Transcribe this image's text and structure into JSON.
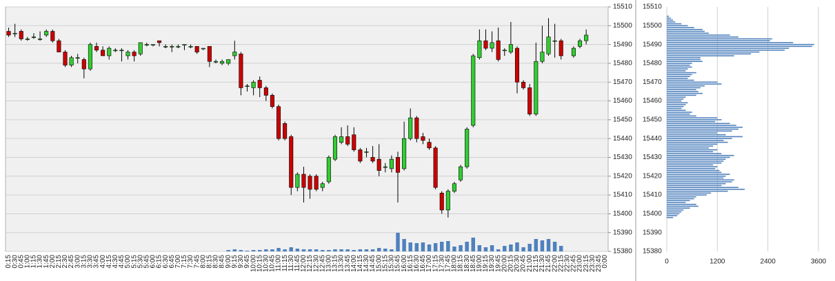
{
  "chart_data": [
    {
      "type": "candlestick",
      "categories": [
        "0:15",
        "0:30",
        "0:45",
        "1:00",
        "1:15",
        "1:30",
        "1:45",
        "2:00",
        "2:15",
        "2:30",
        "2:45",
        "3:00",
        "3:15",
        "3:30",
        "3:45",
        "4:00",
        "4:15",
        "4:30",
        "4:45",
        "5:00",
        "5:15",
        "5:30",
        "5:45",
        "6:00",
        "6:15",
        "6:30",
        "6:45",
        "7:00",
        "7:15",
        "7:30",
        "7:45",
        "8:00",
        "8:15",
        "8:30",
        "8:45",
        "9:00",
        "9:15",
        "9:30",
        "9:45",
        "10:00",
        "10:15",
        "10:30",
        "10:45",
        "11:00",
        "11:15",
        "11:30",
        "11:45",
        "12:00",
        "12:15",
        "12:30",
        "12:45",
        "13:00",
        "13:15",
        "13:30",
        "13:45",
        "14:00",
        "14:15",
        "14:30",
        "14:45",
        "15:00",
        "15:15",
        "15:30",
        "15:45",
        "16:00",
        "16:15",
        "16:30",
        "16:45",
        "17:00",
        "17:15",
        "17:30",
        "17:45",
        "18:00",
        "18:15",
        "18:30",
        "18:45",
        "19:00",
        "19:15",
        "19:30",
        "19:45",
        "20:00",
        "20:15",
        "20:30",
        "20:45",
        "21:00",
        "21:15",
        "21:30",
        "21:45",
        "22:00",
        "22:15",
        "22:30",
        "22:45",
        "23:00",
        "23:15",
        "23:30",
        "23:45",
        "0:00"
      ],
      "open": [
        15497,
        15496,
        15497,
        15493,
        15494,
        15493,
        15495,
        15497,
        15492,
        15486,
        15479,
        15483,
        15482,
        15477,
        15489,
        15487,
        15484,
        15487,
        15487,
        15484,
        15486,
        15485,
        15490,
        15490,
        15492,
        15489,
        15489,
        15489,
        15490,
        15489,
        15489,
        15488,
        15489,
        15481,
        15480,
        15480,
        15484,
        15485,
        15468,
        15467,
        15471,
        15467,
        15463,
        15457,
        15448,
        15441,
        15414,
        15421,
        15420,
        15420,
        15414,
        15417,
        15429,
        15438,
        15441,
        15442,
        15434,
        15433,
        15430,
        15429,
        15425,
        15424,
        15430,
        15424,
        15440,
        15451,
        15441,
        15438,
        15435,
        15411,
        15402,
        15412,
        15418,
        15425,
        15447,
        15483,
        15492,
        15488,
        15492,
        15487,
        15486,
        15488,
        15470,
        15467,
        15453,
        15481,
        15485,
        15492,
        15492,
        null,
        15484,
        15489,
        15492,
        null,
        null,
        null
      ],
      "high": [
        15499,
        15501,
        15498,
        15494,
        15496,
        15497,
        15498,
        15498,
        15493,
        15487,
        15484,
        15485,
        15483,
        15491,
        15491,
        15489,
        15489,
        15488,
        15488,
        15487,
        15487,
        15491,
        15491,
        15490,
        15492,
        15490,
        15490,
        15490,
        15490,
        15490,
        15489,
        15488,
        15489,
        15482,
        15482,
        15482,
        15492,
        15486,
        15469,
        15471,
        15473,
        15468,
        15464,
        15458,
        15449,
        15442,
        15422,
        15425,
        15421,
        15421,
        15417,
        15431,
        15442,
        15446,
        15447,
        15446,
        15435,
        15435,
        15436,
        15437,
        15427,
        15431,
        15433,
        15449,
        15456,
        15452,
        15443,
        15440,
        15436,
        15412,
        15413,
        15417,
        15426,
        15446,
        15485,
        15498,
        15498,
        15497,
        15499,
        15488,
        15502,
        15489,
        15471,
        15469,
        15491,
        15500,
        15504,
        15501,
        15493,
        null,
        15489,
        15493,
        15498,
        null,
        null,
        null
      ],
      "low": [
        15494,
        15494,
        15492,
        15492,
        15493,
        15492,
        15494,
        15491,
        15486,
        15478,
        15478,
        15480,
        15472,
        15476,
        15486,
        15484,
        15482,
        15486,
        15481,
        15482,
        15481,
        15484,
        15489,
        15489,
        15489,
        15488,
        15486,
        15488,
        15487,
        15488,
        15485,
        15487,
        15478,
        15480,
        15479,
        15479,
        15482,
        15463,
        15465,
        15463,
        15462,
        15460,
        15456,
        15439,
        15439,
        15410,
        15412,
        15406,
        15408,
        15412,
        15412,
        15416,
        15428,
        15437,
        15436,
        15433,
        15427,
        15430,
        15427,
        15420,
        15422,
        15422,
        15406,
        15423,
        15439,
        15438,
        15437,
        15434,
        15413,
        15400,
        15398,
        15411,
        15417,
        15424,
        15446,
        15482,
        15487,
        15486,
        15481,
        15484,
        15485,
        15464,
        15466,
        15452,
        15452,
        15480,
        15484,
        15483,
        15482,
        null,
        15483,
        15488,
        15490,
        null,
        null,
        null
      ],
      "close": [
        15495,
        15496,
        15493,
        15493,
        15494,
        15493,
        15497,
        15492,
        15486,
        15479,
        15483,
        15483,
        15477,
        15490,
        15487,
        15484,
        15488,
        15487,
        15487,
        15486,
        15484,
        15491,
        15490,
        15490,
        15491,
        15489,
        15489,
        15489,
        15490,
        15489,
        15486,
        15488,
        15481,
        15481,
        15481,
        15482,
        15486,
        15467,
        15468,
        15470,
        15467,
        15463,
        15457,
        15440,
        15440,
        15414,
        15421,
        15414,
        15413,
        15413,
        15416,
        15430,
        15441,
        15441,
        15437,
        15434,
        15428,
        15433,
        15428,
        15423,
        15425,
        15429,
        15422,
        15440,
        15451,
        15440,
        15439,
        15435,
        15414,
        15402,
        15412,
        15416,
        15425,
        15445,
        15484,
        15492,
        15488,
        15491,
        15482,
        15487,
        15490,
        15470,
        15467,
        15453,
        15481,
        15486,
        15494,
        15492,
        15484,
        null,
        15488,
        15492,
        15495,
        null,
        null,
        null
      ],
      "volume": [
        null,
        null,
        null,
        null,
        null,
        null,
        null,
        null,
        null,
        null,
        null,
        null,
        null,
        null,
        null,
        null,
        null,
        null,
        null,
        null,
        null,
        null,
        null,
        null,
        null,
        null,
        null,
        null,
        null,
        null,
        null,
        null,
        null,
        null,
        null,
        2,
        3,
        2,
        1,
        2,
        2,
        3,
        3,
        5,
        3,
        6,
        4,
        3,
        3,
        3,
        2,
        2,
        3,
        3,
        3,
        2,
        3,
        3,
        3,
        5,
        4,
        3,
        27,
        18,
        13,
        12,
        13,
        10,
        12,
        14,
        15,
        7,
        9,
        14,
        20,
        9,
        6,
        9,
        3,
        8,
        10,
        13,
        6,
        11,
        18,
        16,
        18,
        14,
        8,
        null,
        null,
        null,
        null,
        null,
        null,
        null
      ],
      "up_color": "#33cc33",
      "down_color": "#cc0000",
      "volume_color": "#4f81bd",
      "ylim": [
        15380,
        15510
      ],
      "yticks": [
        15380,
        15390,
        15400,
        15410,
        15420,
        15430,
        15440,
        15450,
        15460,
        15470,
        15480,
        15490,
        15500,
        15510
      ],
      "grid": true
    },
    {
      "type": "hbar",
      "categories": [
        15505,
        15504,
        15503,
        15502,
        15501,
        15500,
        15499,
        15498,
        15497,
        15496,
        15495,
        15494,
        15493,
        15492,
        15491,
        15490,
        15489,
        15488,
        15487,
        15486,
        15485,
        15484,
        15483,
        15482,
        15481,
        15480,
        15479,
        15478,
        15477,
        15476,
        15475,
        15474,
        15473,
        15472,
        15471,
        15470,
        15469,
        15468,
        15467,
        15466,
        15465,
        15464,
        15463,
        15462,
        15461,
        15460,
        15459,
        15458,
        15457,
        15456,
        15455,
        15454,
        15453,
        15452,
        15451,
        15450,
        15449,
        15448,
        15447,
        15446,
        15445,
        15444,
        15443,
        15442,
        15441,
        15440,
        15439,
        15438,
        15437,
        15436,
        15435,
        15434,
        15433,
        15432,
        15431,
        15430,
        15429,
        15428,
        15427,
        15426,
        15425,
        15424,
        15423,
        15422,
        15421,
        15420,
        15419,
        15418,
        15417,
        15416,
        15415,
        15414,
        15413,
        15412,
        15411,
        15410,
        15409,
        15408,
        15407,
        15406,
        15405,
        15404,
        15403,
        15402,
        15401,
        15400,
        15399,
        15398
      ],
      "values": [
        50,
        100,
        150,
        200,
        350,
        500,
        650,
        850,
        900,
        1000,
        1500,
        1700,
        2500,
        2450,
        3000,
        3500,
        3450,
        2900,
        2800,
        2200,
        2000,
        1600,
        800,
        800,
        850,
        600,
        550,
        600,
        500,
        450,
        700,
        600,
        550,
        500,
        650,
        1200,
        1300,
        900,
        800,
        700,
        750,
        850,
        700,
        450,
        400,
        350,
        500,
        450,
        400,
        350,
        450,
        600,
        550,
        700,
        1200,
        1300,
        1150,
        1500,
        1650,
        1800,
        1700,
        1550,
        1200,
        1400,
        1800,
        1550,
        1350,
        1450,
        1200,
        1100,
        1000,
        1200,
        1100,
        1300,
        1600,
        1500,
        1400,
        1350,
        1300,
        1100,
        1200,
        1150,
        1250,
        1300,
        1500,
        1400,
        1350,
        1600,
        1550,
        1400,
        1300,
        1700,
        1850,
        1450,
        1050,
        950,
        700,
        650,
        550,
        450,
        700,
        750,
        550,
        400,
        350,
        300,
        250,
        150
      ],
      "color": "#4f81bd",
      "xlim": [
        0,
        3600
      ],
      "xticks": [
        0,
        1200,
        2400,
        3600
      ],
      "ylim": [
        15380,
        15510
      ],
      "yticks": [
        15380,
        15390,
        15400,
        15410,
        15420,
        15430,
        15440,
        15450,
        15460,
        15470,
        15480,
        15490,
        15500,
        15510
      ],
      "grid": true
    }
  ]
}
